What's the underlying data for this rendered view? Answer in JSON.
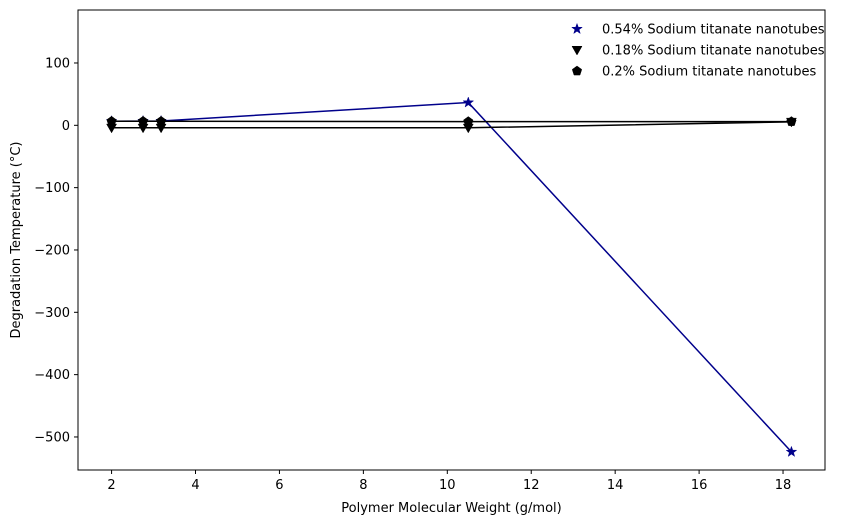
{
  "chart_data": {
    "type": "line",
    "title": "",
    "xlabel": "Polymer Molecular Weight (g/mol)",
    "ylabel": "Degradation Temperature (°C)",
    "xlim": [
      1.2,
      19.0
    ],
    "ylim": [
      -553,
      185
    ],
    "xticks": [
      2,
      4,
      6,
      8,
      10,
      12,
      14,
      16,
      18
    ],
    "yticks": [
      100,
      0,
      -100,
      -200,
      -300,
      -400,
      -500
    ],
    "ytick_labels": [
      "100",
      "0",
      "−100",
      "−200",
      "−300",
      "−400",
      "−500"
    ],
    "legend_position": "top-right",
    "grid": false,
    "series": [
      {
        "name": "0.54% Sodium titanate nanotubes",
        "marker": "star",
        "color": "#00008b",
        "x": [
          2.0,
          2.75,
          3.18,
          10.5,
          18.2
        ],
        "y": [
          6.5,
          6.8,
          6.9,
          36.5,
          -524.0
        ]
      },
      {
        "name": "0.18% Sodium titanate nanotubes",
        "marker": "triangle-down",
        "color": "#000000",
        "x": [
          2.0,
          2.75,
          3.18,
          10.5,
          18.2
        ],
        "y": [
          -4.0,
          -4.0,
          -4.0,
          -4.0,
          5.5
        ]
      },
      {
        "name": "0.2% Sodium titanate nanotubes",
        "marker": "pentagon",
        "color": "#000000",
        "x": [
          2.0,
          2.75,
          3.18,
          10.5,
          18.2
        ],
        "y": [
          6.5,
          6.5,
          6.5,
          6.0,
          6.0
        ]
      }
    ]
  }
}
